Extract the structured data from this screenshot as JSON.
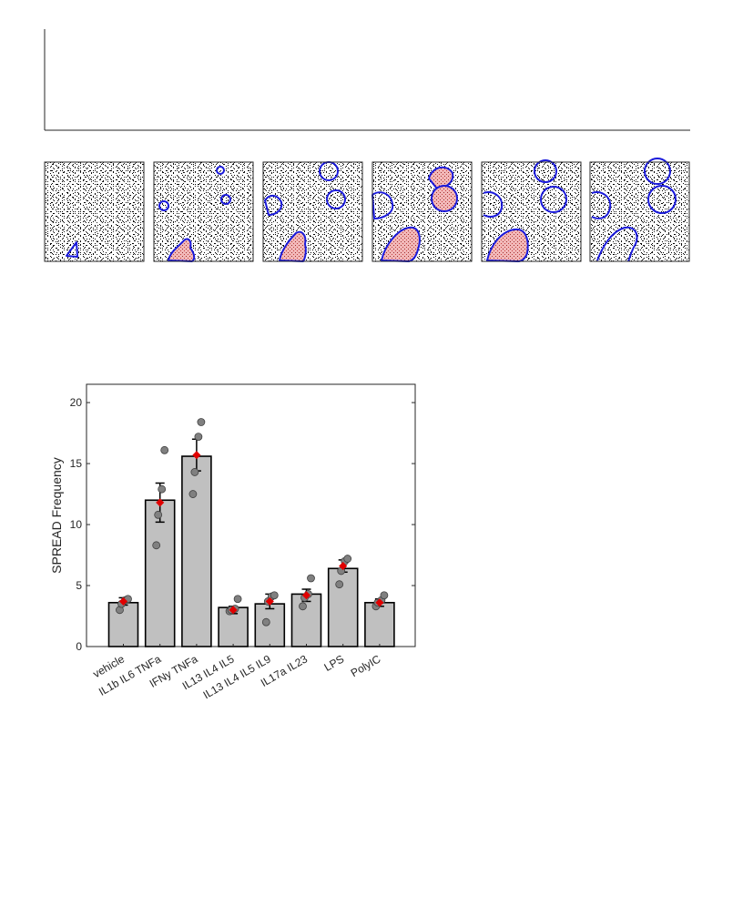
{
  "figure": {
    "background": "#ffffff"
  },
  "panels": {
    "count": 6,
    "dot_color": "#000000",
    "outline_color": "#1a1adb",
    "fill_color": "#f2b8b8"
  },
  "chart_data": {
    "type": "bar",
    "categories": [
      "vehicle",
      "IL1b IL6 TNFa",
      "IFNy TNFa",
      "IL13 IL4 IL5",
      "IL13 IL4 IL5 IL9",
      "IL17a IL23",
      "LPS",
      "PolyIC"
    ],
    "values": [
      3.6,
      12.0,
      15.6,
      3.2,
      3.5,
      4.3,
      6.4,
      3.6
    ],
    "means": [
      3.7,
      11.8,
      15.7,
      3.0,
      3.7,
      4.2,
      6.6,
      3.6
    ],
    "errors": [
      0.3,
      1.6,
      1.3,
      0.3,
      0.6,
      0.5,
      0.5,
      0.3
    ],
    "points": [
      [
        3.0,
        3.5,
        3.8,
        3.9
      ],
      [
        8.3,
        10.8,
        12.9,
        16.1
      ],
      [
        12.5,
        14.3,
        17.2,
        18.4
      ],
      [
        2.9,
        3.0,
        3.1,
        3.9
      ],
      [
        2.0,
        3.7,
        4.1,
        4.2
      ],
      [
        3.3,
        4.0,
        4.3,
        5.6
      ],
      [
        5.1,
        6.2,
        7.0,
        7.2
      ],
      [
        3.3,
        3.6,
        3.8,
        4.2
      ]
    ],
    "ylabel": "SPREAD Frequency",
    "xlabel": "",
    "title": "",
    "ylim": [
      0,
      21.5
    ],
    "yticks": [
      0,
      5,
      10,
      15,
      20
    ],
    "bar_color": "#c0c0c0",
    "point_color": "#808080",
    "mean_color": "#e00000",
    "grid": false
  }
}
